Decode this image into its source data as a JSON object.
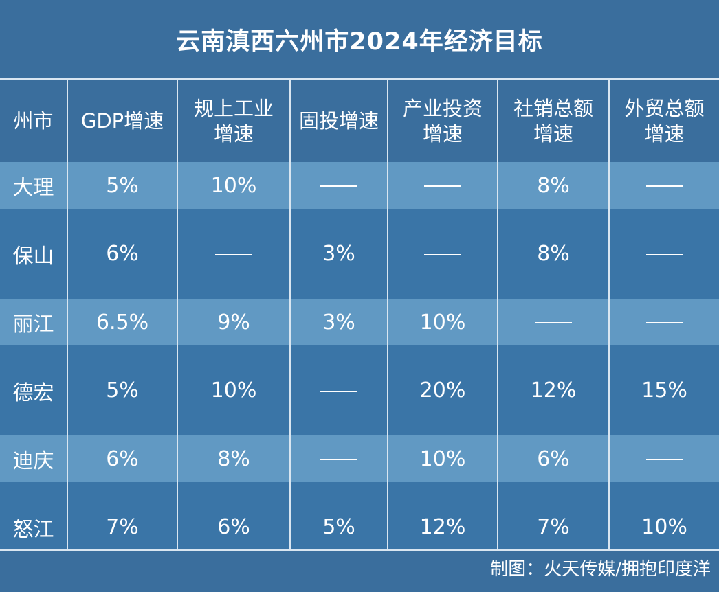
{
  "title": "云南滇西六州市2024年经济目标",
  "headers": [
    "州市",
    "GDP增速",
    "规上工业\n增速",
    "固投增速",
    "产业投资\n增速",
    "社销总额\n增速",
    "外贸总额\n增速"
  ],
  "rows": [
    [
      "大理",
      "5%",
      "10%",
      "——",
      "——",
      "8%",
      "——"
    ],
    [
      "保山",
      "6%",
      "——",
      "3%",
      "——",
      "8%",
      "——"
    ],
    [
      "丽江",
      "6.5%",
      "9%",
      "3%",
      "10%",
      "——",
      "——"
    ],
    [
      "德宏",
      "5%",
      "10%",
      "——",
      "20%",
      "12%",
      "15%"
    ],
    [
      "迪庆",
      "6%",
      "8%",
      "——",
      "10%",
      "6%",
      "——"
    ],
    [
      "怒江",
      "7%",
      "6%",
      "5%",
      "12%",
      "7%",
      "10%"
    ]
  ],
  "credit": "制图：火天传媒/拥抱印度洋"
}
